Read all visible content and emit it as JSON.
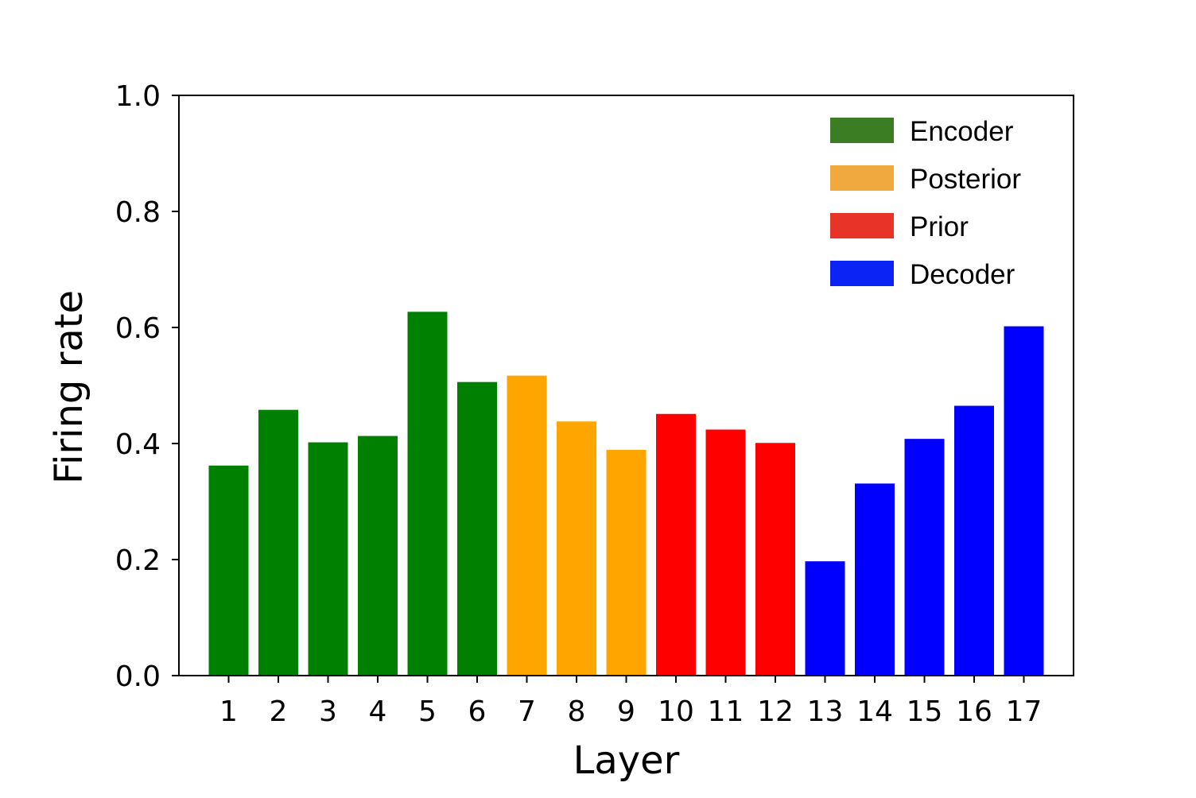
{
  "chart_data": {
    "type": "bar",
    "xlabel": "Layer",
    "ylabel": "Firing rate",
    "ylim": [
      0,
      1.0
    ],
    "yticks": [
      "0.0",
      "0.2",
      "0.4",
      "0.6",
      "0.8",
      "1.0"
    ],
    "categories": [
      "1",
      "2",
      "3",
      "4",
      "5",
      "6",
      "7",
      "8",
      "9",
      "10",
      "11",
      "12",
      "13",
      "14",
      "15",
      "16",
      "17"
    ],
    "values": [
      0.362,
      0.458,
      0.402,
      0.413,
      0.627,
      0.506,
      0.517,
      0.438,
      0.389,
      0.451,
      0.424,
      0.401,
      0.197,
      0.331,
      0.408,
      0.465,
      0.602
    ],
    "groups": [
      "Encoder",
      "Encoder",
      "Encoder",
      "Encoder",
      "Encoder",
      "Encoder",
      "Posterior",
      "Posterior",
      "Posterior",
      "Prior",
      "Prior",
      "Prior",
      "Decoder",
      "Decoder",
      "Decoder",
      "Decoder",
      "Decoder"
    ],
    "bar_colors": {
      "Encoder": "#008000",
      "Posterior": "#FFA500",
      "Prior": "#FF0000",
      "Decoder": "#0000FF"
    },
    "legend": {
      "placement": "top-right",
      "entries": [
        {
          "name": "Encoder",
          "color": "#3A7D23"
        },
        {
          "name": "Posterior",
          "color": "#F0A93E"
        },
        {
          "name": "Prior",
          "color": "#E83428"
        },
        {
          "name": "Decoder",
          "color": "#0C23F5"
        }
      ]
    },
    "grid": false
  }
}
